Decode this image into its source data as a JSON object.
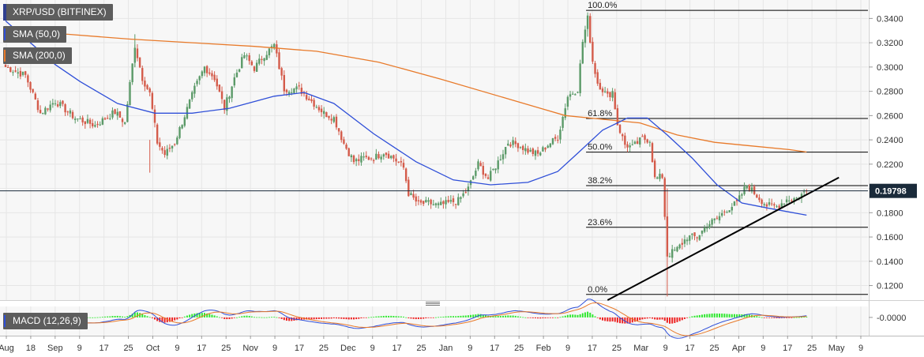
{
  "legend": {
    "instrument": "XRP/USD (BITFINEX)",
    "sma50": "SMA (50,0)",
    "sma200": "SMA (200,0)",
    "macd": "MACD (12,26,9)"
  },
  "colors": {
    "up": "#5b9a68",
    "down": "#d45b4a",
    "sma50": "#2f4fd8",
    "sma200": "#e87a2a",
    "trendline": "#000000",
    "fib": "#000000",
    "price_tag_bg": "#1a2a3a",
    "macd_line": "#2f4fd8",
    "signal_line": "#e87a2a",
    "hist_pos": "#2ee82e",
    "hist_neg": "#ee2222",
    "panel_bg": "#f7f7f7",
    "grid": "#e6e6e6"
  },
  "chart_data": [
    {
      "type": "candlestick",
      "title": "XRP/USD (BITFINEX)",
      "last_price": "0.19798",
      "y_ticks": [
        "0.3400",
        "0.3200",
        "0.3000",
        "0.2800",
        "0.2600",
        "0.2400",
        "0.2200",
        "0.2000",
        "0.1800",
        "0.1600",
        "0.1400",
        "0.1200"
      ],
      "ylim": [
        0.108,
        0.35
      ],
      "x_ticks": [
        "Aug",
        "18",
        "Sep",
        "9",
        "17",
        "25",
        "Oct",
        "9",
        "17",
        "25",
        "Nov",
        "9",
        "17",
        "25",
        "Dec",
        "9",
        "17",
        "25",
        "Jan",
        "9",
        "17",
        "25",
        "Feb",
        "9",
        "17",
        "25",
        "Mar",
        "9",
        "17",
        "25",
        "Apr",
        "9",
        "17",
        "25",
        "May",
        "9"
      ],
      "anchors": [
        [
          0,
          0.3
        ],
        [
          8,
          0.293
        ],
        [
          14,
          0.262
        ],
        [
          20,
          0.272
        ],
        [
          28,
          0.258
        ],
        [
          36,
          0.252
        ],
        [
          44,
          0.263
        ],
        [
          48,
          0.254
        ],
        [
          52,
          0.318
        ],
        [
          55,
          0.291
        ],
        [
          58,
          0.278
        ],
        [
          61,
          0.238
        ],
        [
          64,
          0.228
        ],
        [
          68,
          0.238
        ],
        [
          72,
          0.26
        ],
        [
          76,
          0.282
        ],
        [
          80,
          0.3
        ],
        [
          84,
          0.291
        ],
        [
          88,
          0.266
        ],
        [
          92,
          0.291
        ],
        [
          96,
          0.31
        ],
        [
          100,
          0.299
        ],
        [
          104,
          0.31
        ],
        [
          108,
          0.318
        ],
        [
          112,
          0.282
        ],
        [
          118,
          0.282
        ],
        [
          124,
          0.27
        ],
        [
          128,
          0.262
        ],
        [
          132,
          0.258
        ],
        [
          136,
          0.237
        ],
        [
          140,
          0.222
        ],
        [
          144,
          0.225
        ],
        [
          148,
          0.225
        ],
        [
          152,
          0.23
        ],
        [
          156,
          0.225
        ],
        [
          160,
          0.217
        ],
        [
          162,
          0.196
        ],
        [
          166,
          0.187
        ],
        [
          170,
          0.188
        ],
        [
          174,
          0.186
        ],
        [
          178,
          0.188
        ],
        [
          182,
          0.19
        ],
        [
          186,
          0.2
        ],
        [
          190,
          0.22
        ],
        [
          194,
          0.208
        ],
        [
          198,
          0.222
        ],
        [
          202,
          0.238
        ],
        [
          206,
          0.236
        ],
        [
          210,
          0.231
        ],
        [
          214,
          0.228
        ],
        [
          218,
          0.236
        ],
        [
          222,
          0.242
        ],
        [
          226,
          0.276
        ],
        [
          230,
          0.282
        ],
        [
          232,
          0.321
        ],
        [
          234,
          0.34
        ],
        [
          236,
          0.305
        ],
        [
          238,
          0.287
        ],
        [
          242,
          0.276
        ],
        [
          244,
          0.28
        ],
        [
          246,
          0.253
        ],
        [
          249,
          0.236
        ],
        [
          252,
          0.234
        ],
        [
          256,
          0.241
        ],
        [
          259,
          0.24
        ],
        [
          261,
          0.208
        ],
        [
          264,
          0.21
        ],
        [
          266,
          0.145
        ],
        [
          270,
          0.15
        ],
        [
          274,
          0.16
        ],
        [
          278,
          0.16
        ],
        [
          282,
          0.17
        ],
        [
          286,
          0.175
        ],
        [
          290,
          0.183
        ],
        [
          294,
          0.188
        ],
        [
          298,
          0.203
        ],
        [
          302,
          0.194
        ],
        [
          306,
          0.186
        ],
        [
          310,
          0.185
        ],
        [
          314,
          0.191
        ],
        [
          318,
          0.192
        ],
        [
          322,
          0.198
        ]
      ],
      "candle_count": 323,
      "sma50": [
        [
          0,
          0.338
        ],
        [
          20,
          0.302
        ],
        [
          30,
          0.288
        ],
        [
          45,
          0.27
        ],
        [
          60,
          0.262
        ],
        [
          75,
          0.262
        ],
        [
          90,
          0.266
        ],
        [
          108,
          0.276
        ],
        [
          120,
          0.279
        ],
        [
          132,
          0.27
        ],
        [
          148,
          0.245
        ],
        [
          165,
          0.222
        ],
        [
          180,
          0.207
        ],
        [
          195,
          0.203
        ],
        [
          210,
          0.205
        ],
        [
          222,
          0.214
        ],
        [
          230,
          0.229
        ],
        [
          240,
          0.248
        ],
        [
          250,
          0.258
        ],
        [
          258,
          0.258
        ],
        [
          266,
          0.244
        ],
        [
          276,
          0.225
        ],
        [
          286,
          0.203
        ],
        [
          296,
          0.188
        ],
        [
          306,
          0.184
        ],
        [
          314,
          0.181
        ],
        [
          322,
          0.178
        ]
      ],
      "sma200": [
        [
          0,
          0.329
        ],
        [
          25,
          0.327
        ],
        [
          50,
          0.323
        ],
        [
          75,
          0.32
        ],
        [
          100,
          0.317
        ],
        [
          125,
          0.313
        ],
        [
          150,
          0.304
        ],
        [
          175,
          0.29
        ],
        [
          200,
          0.275
        ],
        [
          215,
          0.266
        ],
        [
          225,
          0.26
        ],
        [
          240,
          0.257
        ],
        [
          255,
          0.254
        ],
        [
          270,
          0.244
        ],
        [
          285,
          0.238
        ],
        [
          300,
          0.235
        ],
        [
          315,
          0.232
        ],
        [
          322,
          0.23
        ]
      ],
      "fibonacci": [
        {
          "label": "100.0%",
          "value": 0.3467
        },
        {
          "label": "61.8%",
          "value": 0.2576
        },
        {
          "label": "50.0%",
          "value": 0.2299
        },
        {
          "label": "38.2%",
          "value": 0.2023
        },
        {
          "label": "23.6%",
          "value": 0.168
        },
        {
          "label": "0.0%",
          "value": 0.1127
        }
      ],
      "fib_start_index": 234,
      "trendline": {
        "from": [
          242,
          0.108
        ],
        "to": [
          335,
          0.209
        ]
      }
    },
    {
      "type": "macd",
      "title": "MACD (12,26,9)",
      "y_ticks": [
        "-0.0000"
      ],
      "ylim": [
        -0.025,
        0.015
      ],
      "values_note": "",
      "zero": 0
    }
  ]
}
